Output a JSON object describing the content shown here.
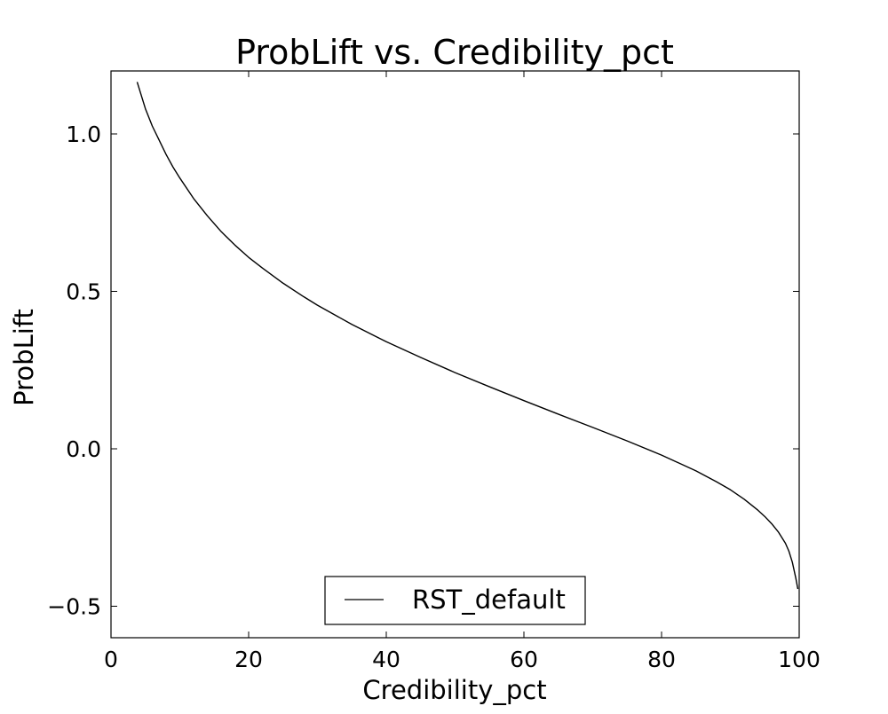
{
  "chart_data": {
    "type": "line",
    "title": "ProbLift vs. Credibility_pct",
    "xlabel": "Credibility_pct",
    "ylabel": "ProbLift",
    "xlim": [
      0,
      100
    ],
    "ylim": [
      -0.6,
      1.2
    ],
    "x_ticks": [
      0,
      20,
      40,
      60,
      80,
      100
    ],
    "x_tick_labels": [
      "0",
      "20",
      "40",
      "60",
      "80",
      "100"
    ],
    "y_ticks": [
      -0.5,
      0.0,
      0.5,
      1.0
    ],
    "y_tick_labels": [
      "−0.5",
      "0.0",
      "0.5",
      "1.0"
    ],
    "grid": false,
    "legend_position": "lower-center",
    "series": [
      {
        "name": "RST_default",
        "color": "#000000",
        "x": [
          3.8,
          5,
          6,
          7,
          8,
          9,
          10,
          12,
          14,
          16,
          18,
          20,
          22,
          25,
          28,
          30,
          35,
          40,
          45,
          50,
          55,
          60,
          65,
          70,
          75,
          80,
          85,
          88,
          90,
          92,
          94,
          95,
          96,
          97,
          98,
          98.5,
          99,
          99.5,
          99.8
        ],
        "y": [
          1.165,
          1.08,
          1.025,
          0.98,
          0.935,
          0.895,
          0.86,
          0.795,
          0.74,
          0.69,
          0.647,
          0.608,
          0.574,
          0.526,
          0.483,
          0.456,
          0.395,
          0.34,
          0.29,
          0.242,
          0.197,
          0.153,
          0.11,
          0.068,
          0.025,
          -0.02,
          -0.07,
          -0.105,
          -0.13,
          -0.16,
          -0.195,
          -0.215,
          -0.238,
          -0.265,
          -0.3,
          -0.325,
          -0.36,
          -0.41,
          -0.445
        ]
      }
    ]
  }
}
